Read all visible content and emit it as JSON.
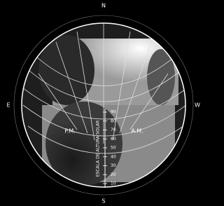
{
  "compass": {
    "north": "N",
    "south": "S",
    "east": "E",
    "west": "W"
  },
  "labels": {
    "pm": "P.M.",
    "am": "A.M.",
    "scale_title": "ESCALA DE ALTURA SOLAR"
  },
  "altitude_scale": [
    90,
    80,
    70,
    60,
    50,
    40,
    30,
    20,
    10
  ]
}
